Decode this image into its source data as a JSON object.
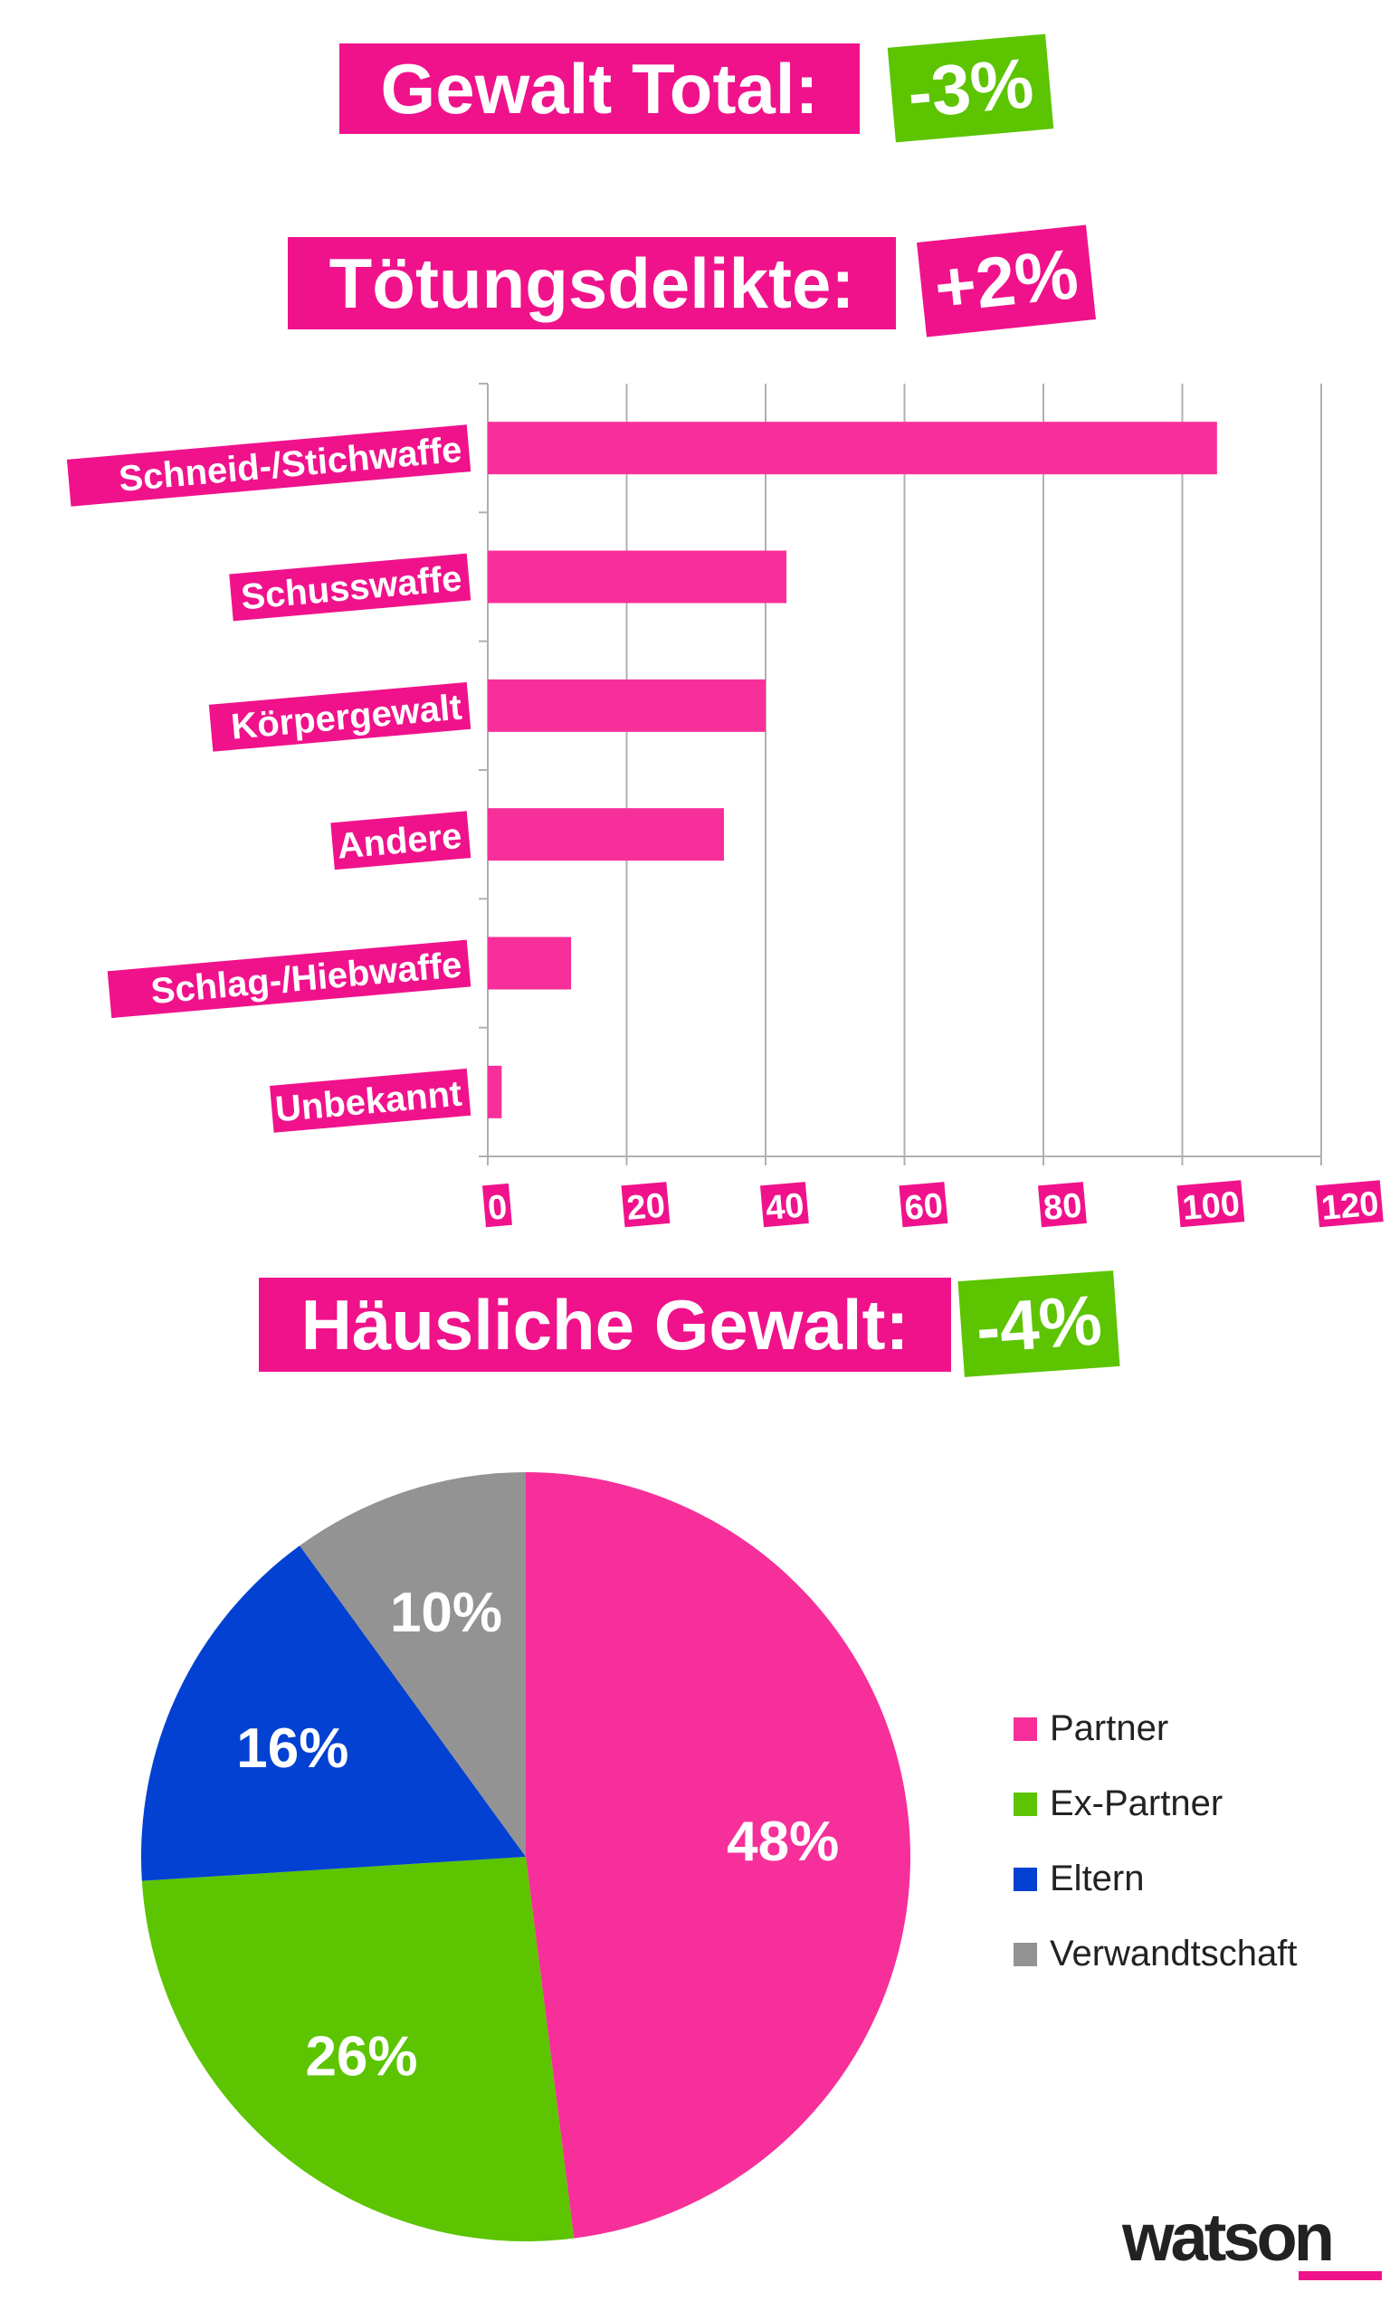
{
  "headers": {
    "total": {
      "label": "Gewalt Total:",
      "change": "-3%"
    },
    "toetung": {
      "label": "Tötungsdelikte:",
      "change": "+2%"
    },
    "haeuslich": {
      "label": "Häusliche Gewalt:",
      "change": "-4%"
    }
  },
  "colors": {
    "header_pink": "#f0128b",
    "bar_pink": "#f72f9a",
    "green": "#5cc400",
    "blue": "#0241d1",
    "gray": "#939393",
    "grid": "#b0b0b0"
  },
  "chart_data": [
    {
      "type": "bar",
      "orientation": "horizontal",
      "categories": [
        "Schneid-/Stichwaffe",
        "Schusswaffe",
        "Körpergewalt",
        "Andere",
        "Schlag-/Hiebwaffe",
        "Unbekannt"
      ],
      "values": [
        105,
        43,
        40,
        34,
        12,
        2
      ],
      "xlim": [
        0,
        120
      ],
      "xticks": [
        "0",
        "20",
        "40",
        "60",
        "80",
        "100",
        "120"
      ],
      "grid": true
    },
    {
      "type": "pie",
      "categories": [
        "Partner",
        "Ex-Partner",
        "Eltern",
        "Verwandtschaft"
      ],
      "values": [
        48,
        26,
        16,
        10
      ],
      "labels": [
        "48%",
        "26%",
        "16%",
        "10%"
      ],
      "colors": [
        "#f72f9a",
        "#5cc400",
        "#0241d1",
        "#939393"
      ],
      "legend": "right"
    }
  ],
  "logo": "watson"
}
